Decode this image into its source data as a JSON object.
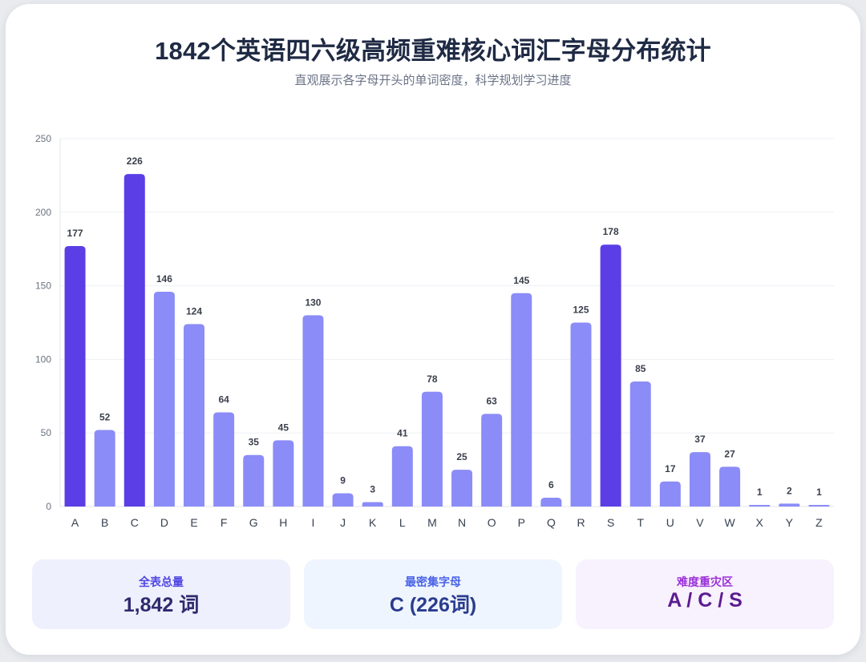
{
  "header": {
    "title": "1842个英语四六级高频重难核心词汇字母分布统计",
    "subtitle": "直观展示各字母开头的单词密度，科学规划学习进度"
  },
  "chart_data": {
    "type": "bar",
    "categories": [
      "A",
      "B",
      "C",
      "D",
      "E",
      "F",
      "G",
      "H",
      "I",
      "J",
      "K",
      "L",
      "M",
      "N",
      "O",
      "P",
      "Q",
      "R",
      "S",
      "T",
      "U",
      "V",
      "W",
      "X",
      "Y",
      "Z"
    ],
    "values": [
      177,
      52,
      226,
      146,
      124,
      64,
      35,
      45,
      130,
      9,
      3,
      41,
      78,
      25,
      63,
      145,
      6,
      125,
      178,
      85,
      17,
      37,
      27,
      1,
      2,
      1
    ],
    "highlighted": [
      "A",
      "C",
      "S"
    ],
    "ylim": [
      0,
      250
    ],
    "yticks": [
      0,
      50,
      100,
      150,
      200,
      250
    ],
    "grid": true,
    "data_labels": true,
    "colors": {
      "highlight": "#5b3ee6",
      "normal": "#8b8cf7",
      "label": "#3a3f4b",
      "tick": "#6b7280",
      "grid": "#eef0f4"
    }
  },
  "stats": {
    "total": {
      "label": "全表总量",
      "value": "1,842 词"
    },
    "densest": {
      "label": "最密集字母",
      "value": "C (226词)"
    },
    "hard": {
      "label": "难度重灾区",
      "value": "A / C / S"
    }
  }
}
